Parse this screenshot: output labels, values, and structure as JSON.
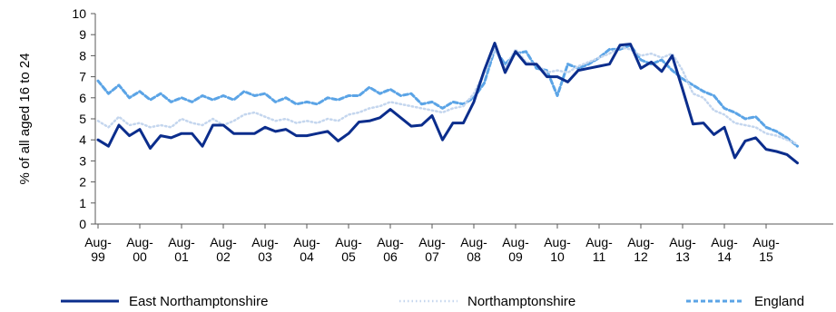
{
  "chart_data": {
    "type": "line",
    "ylabel": "% of all aged 16 to 24",
    "ylim": [
      0,
      10
    ],
    "yticks": [
      0,
      1,
      2,
      3,
      4,
      5,
      6,
      7,
      8,
      9,
      10
    ],
    "grid": false,
    "legend_placement": "bottom",
    "x_tick_labels": [
      [
        "Aug-",
        "99"
      ],
      [
        "Aug-",
        "00"
      ],
      [
        "Aug-",
        "01"
      ],
      [
        "Aug-",
        "02"
      ],
      [
        "Aug-",
        "03"
      ],
      [
        "Aug-",
        "04"
      ],
      [
        "Aug-",
        "05"
      ],
      [
        "Aug-",
        "06"
      ],
      [
        "Aug-",
        "07"
      ],
      [
        "Aug-",
        "08"
      ],
      [
        "Aug-",
        "09"
      ],
      [
        "Aug-",
        "10"
      ],
      [
        "Aug-",
        "11"
      ],
      [
        "Aug-",
        "12"
      ],
      [
        "Aug-",
        "13"
      ],
      [
        "Aug-",
        "14"
      ],
      [
        "Aug-",
        "15"
      ]
    ],
    "x_start": "Aug-99",
    "x_step": "quarter",
    "series": [
      {
        "name": "East Northamptonshire",
        "color": "#0b2d8c",
        "style": "solid",
        "values": [
          4.0,
          3.7,
          4.7,
          4.2,
          4.5,
          3.6,
          4.2,
          4.1,
          4.3,
          4.3,
          3.7,
          4.7,
          4.7,
          4.3,
          4.3,
          4.3,
          4.6,
          4.4,
          4.5,
          4.2,
          4.2,
          4.3,
          4.4,
          3.95,
          4.3,
          4.85,
          4.9,
          5.05,
          5.45,
          5.05,
          4.65,
          4.7,
          5.15,
          4.0,
          4.8,
          4.8,
          5.8,
          7.3,
          8.6,
          7.2,
          8.2,
          7.6,
          7.6,
          7.0,
          7.0,
          6.75,
          7.3,
          7.4,
          7.5,
          7.6,
          8.5,
          8.55,
          7.4,
          7.7,
          7.25,
          8.0,
          6.4,
          4.75,
          4.8,
          4.25,
          4.6,
          3.15,
          3.95,
          4.1,
          3.55,
          3.45,
          3.3,
          2.9
        ]
      },
      {
        "name": "Northamptonshire",
        "color": "#c4d6ee",
        "style": "dotted",
        "values": [
          4.9,
          4.6,
          5.1,
          4.7,
          4.8,
          4.6,
          4.7,
          4.6,
          5.0,
          4.8,
          4.7,
          5.0,
          4.7,
          4.9,
          5.2,
          5.3,
          5.1,
          4.9,
          5.0,
          4.8,
          4.9,
          4.8,
          5.0,
          4.9,
          5.2,
          5.3,
          5.5,
          5.6,
          5.8,
          5.7,
          5.6,
          5.5,
          5.4,
          5.3,
          5.5,
          5.6,
          6.2,
          7.2,
          8.3,
          7.4,
          8.3,
          7.7,
          7.6,
          7.2,
          7.3,
          7.2,
          7.5,
          7.7,
          7.9,
          8.1,
          8.4,
          8.3,
          8.0,
          8.1,
          7.9,
          8.1,
          7.3,
          6.2,
          6.0,
          5.4,
          5.2,
          4.8,
          4.7,
          4.6,
          4.3,
          4.2,
          4.0,
          3.8
        ]
      },
      {
        "name": "England",
        "color": "#5ba4e6",
        "style": "dashed",
        "values": [
          6.8,
          6.2,
          6.6,
          6.0,
          6.3,
          5.9,
          6.2,
          5.8,
          6.0,
          5.8,
          6.1,
          5.9,
          6.1,
          5.9,
          6.3,
          6.1,
          6.2,
          5.8,
          6.0,
          5.7,
          5.8,
          5.7,
          6.0,
          5.9,
          6.1,
          6.1,
          6.5,
          6.2,
          6.4,
          6.1,
          6.2,
          5.7,
          5.8,
          5.5,
          5.8,
          5.7,
          6.0,
          6.7,
          8.3,
          7.6,
          8.1,
          8.2,
          7.4,
          7.3,
          6.1,
          7.6,
          7.4,
          7.6,
          7.9,
          8.3,
          8.3,
          8.5,
          7.8,
          7.6,
          7.8,
          7.3,
          6.9,
          6.6,
          6.3,
          6.1,
          5.5,
          5.3,
          5.0,
          5.1,
          4.6,
          4.4,
          4.1,
          3.7
        ]
      }
    ]
  }
}
